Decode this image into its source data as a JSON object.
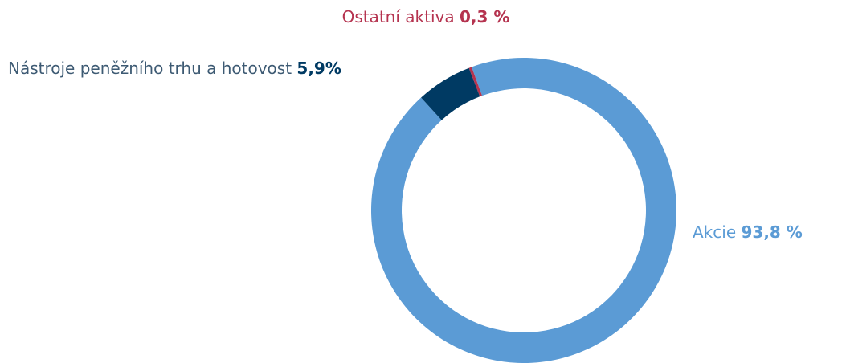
{
  "chart_data": {
    "type": "donut",
    "categories": [
      "Akcie",
      "Nástroje peněžního trhu a hotovost",
      "Ostatní aktiva"
    ],
    "values": [
      93.8,
      5.9,
      0.3
    ],
    "value_labels": [
      "93,8 %",
      "5,9%",
      "0,3 %"
    ],
    "colors": [
      "#5b9bd5",
      "#003a63",
      "#b5334f"
    ]
  }
}
